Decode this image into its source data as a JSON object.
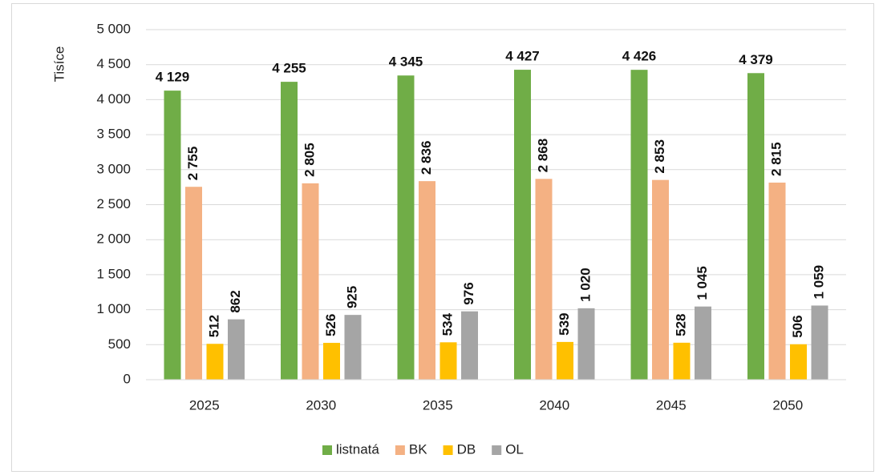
{
  "chart_data": {
    "type": "bar",
    "y_axis_label": "Tisíce",
    "categories": [
      "2025",
      "2030",
      "2035",
      "2040",
      "2045",
      "2050"
    ],
    "series": [
      {
        "name": "listnatá",
        "color": "#70ad47",
        "values": [
          4129,
          4255,
          4345,
          4427,
          4426,
          4379
        ],
        "value_labels": [
          "4 129",
          "4 255",
          "4 345",
          "4 427",
          "4 426",
          "4 379"
        ]
      },
      {
        "name": "BK",
        "color": "#f4b183",
        "values": [
          2755,
          2805,
          2836,
          2868,
          2853,
          2815
        ],
        "value_labels": [
          "2 755",
          "2 805",
          "2 836",
          "2 868",
          "2 853",
          "2 815"
        ]
      },
      {
        "name": "DB",
        "color": "#ffc000",
        "values": [
          512,
          526,
          534,
          539,
          528,
          506
        ]
      },
      {
        "name": "OL",
        "color": "#a5a5a5",
        "values": [
          862,
          925,
          976,
          1020,
          1045,
          1059
        ],
        "value_labels": [
          "862",
          "925",
          "976",
          "1 020",
          "1 045",
          "1 059"
        ]
      }
    ],
    "ylim": [
      0,
      5000
    ],
    "yticks": [
      0,
      500,
      {
        "value": 1000,
        "label": "1 000"
      },
      {
        "value": 1500,
        "label": "1 500"
      },
      {
        "value": 2000,
        "label": "2 000"
      },
      {
        "value": 2500,
        "label": "2 500"
      },
      {
        "value": 3000,
        "label": "3 000"
      },
      {
        "value": 3500,
        "label": "3 500"
      },
      {
        "value": 4000,
        "label": "4 000"
      },
      {
        "value": 4500,
        "label": "4 500"
      },
      {
        "value": 5000,
        "label": "5 000"
      }
    ],
    "grid": true,
    "legend": "bottom"
  }
}
